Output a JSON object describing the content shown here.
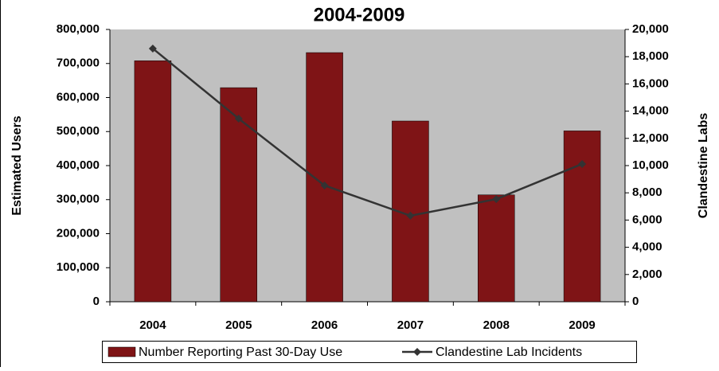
{
  "chart_data": {
    "type": "bar_line",
    "title": "2004-2009",
    "y_label": "Estimated Users",
    "y2_label": "Clandestine Labs",
    "categories": [
      "2004",
      "2005",
      "2006",
      "2007",
      "2008",
      "2009"
    ],
    "series": [
      {
        "name": "Number Reporting Past 30-Day Use",
        "type": "bar",
        "color": "#7f1416",
        "values": [
          708000,
          629000,
          732000,
          531000,
          314000,
          502000
        ]
      },
      {
        "name": "Clandestine Lab Incidents",
        "type": "line",
        "axis": "y2",
        "color": "#333333",
        "values": [
          18600,
          13450,
          8540,
          6320,
          7540,
          10120
        ]
      }
    ],
    "ylim": [
      0,
      800000
    ],
    "yticks": [
      0,
      {
        "value": 100000,
        "label": "100,000"
      },
      {
        "value": 200000,
        "label": "200,000"
      },
      {
        "value": 300000,
        "label": "300,000"
      },
      {
        "value": 400000,
        "label": "400,000"
      },
      {
        "value": 500000,
        "label": "500,000"
      },
      {
        "value": 600000,
        "label": "600,000"
      },
      {
        "value": 700000,
        "label": "700,000"
      },
      {
        "value": 800000,
        "label": "800,000"
      }
    ],
    "y2lim": [
      0,
      20000
    ],
    "y2ticks": [
      0,
      {
        "value": 2000,
        "label": "2,000"
      },
      {
        "value": 4000,
        "label": "4,000"
      },
      {
        "value": 6000,
        "label": "6,000"
      },
      {
        "value": 8000,
        "label": "8,000"
      },
      {
        "value": 10000,
        "label": "10,000"
      },
      {
        "value": 12000,
        "label": "12,000"
      },
      {
        "value": 14000,
        "label": "14,000"
      },
      {
        "value": 16000,
        "label": "16,000"
      },
      {
        "value": 18000,
        "label": "18,000"
      },
      {
        "value": 20000,
        "label": "20,000"
      }
    ],
    "legend": "bottom"
  }
}
